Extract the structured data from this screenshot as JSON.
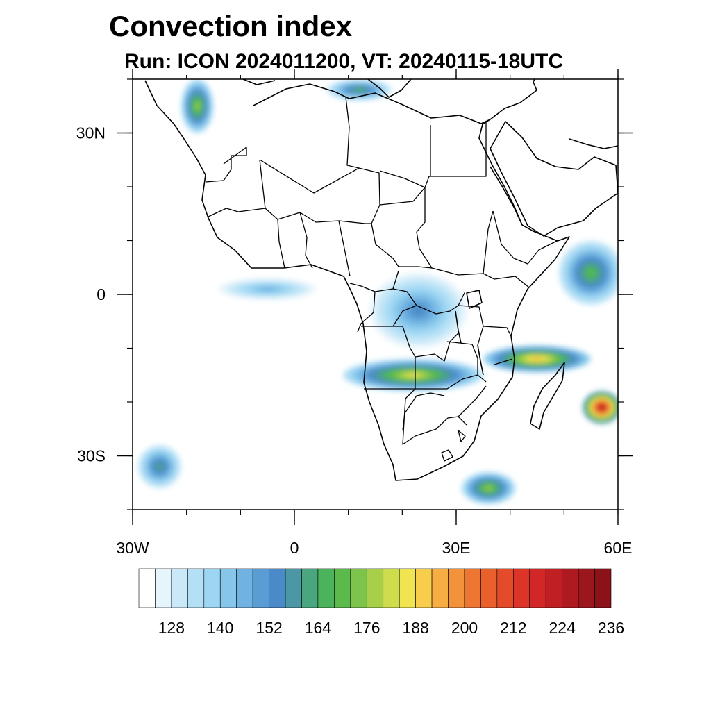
{
  "header": {
    "title": "Convection index",
    "subtitle": "Run: ICON 2024011200,  VT: 20240115-18UTC"
  },
  "map": {
    "projection": "cylindrical-equidistant",
    "lon_range": [
      -30,
      60
    ],
    "lat_range": [
      -40,
      40
    ],
    "lon_ticks": [
      {
        "value": -30,
        "label": "30W"
      },
      {
        "value": 0,
        "label": "0"
      },
      {
        "value": 30,
        "label": "30E"
      },
      {
        "value": 60,
        "label": "60E"
      }
    ],
    "lat_ticks": [
      {
        "value": 30,
        "label": "30N"
      },
      {
        "value": 0,
        "label": "0"
      },
      {
        "value": -30,
        "label": "30S"
      }
    ],
    "minor_lon_step": 10,
    "minor_lat_step": 10
  },
  "colorbar": {
    "colors": [
      "#ffffff",
      "#e6f4fc",
      "#c9e8f8",
      "#b4e0f6",
      "#9dd6f3",
      "#86c6ea",
      "#70b2e2",
      "#5a9dd4",
      "#4a8ac8",
      "#4c97a6",
      "#4aa67e",
      "#4cb35d",
      "#5cba4c",
      "#7cc44b",
      "#a8cf4a",
      "#cddd4c",
      "#f0e451",
      "#f8cd4c",
      "#f6ad42",
      "#f2923a",
      "#ee7633",
      "#e9602d",
      "#e34b2a",
      "#dc3428",
      "#d12727",
      "#c01f24",
      "#ae1a20",
      "#9c161d",
      "#8c121a"
    ],
    "labels": [
      "128",
      "140",
      "152",
      "164",
      "176",
      "188",
      "200",
      "212",
      "224",
      "236"
    ]
  },
  "chart_data": {
    "type": "heatmap",
    "title": "Convection index",
    "subtitle": "Run: ICON 2024011200,  VT: 20240115-18UTC",
    "xlabel": "",
    "ylabel": "",
    "x_range": [
      -30,
      60
    ],
    "y_range": [
      -40,
      40
    ],
    "levels_start": 122,
    "levels_step": 4,
    "colorbar_ticks": [
      128,
      140,
      152,
      164,
      176,
      188,
      200,
      212,
      224,
      236
    ],
    "regions": [
      {
        "name": "central-africa-congo",
        "lon": 23,
        "lat": -3,
        "rlon": 9,
        "rlat": 7,
        "level": 1,
        "peak": 8
      },
      {
        "name": "zambia-angola-band",
        "lon": 22,
        "lat": -15,
        "rlon": 13,
        "rlat": 3,
        "level": 3,
        "peak": 16
      },
      {
        "name": "mozambique-channel-band",
        "lon": 45,
        "lat": -12,
        "rlon": 10,
        "rlat": 2.5,
        "level": 4,
        "peak": 18
      },
      {
        "name": "cyclone-east-madagascar",
        "lon": 57,
        "lat": -21,
        "rlon": 3.5,
        "rlat": 3,
        "level": 8,
        "peak": 27
      },
      {
        "name": "horn-of-africa-ocean",
        "lon": 55,
        "lat": 4,
        "rlon": 6,
        "rlat": 6,
        "level": 2,
        "peak": 12
      },
      {
        "name": "south-atlantic-south",
        "lon": 36,
        "lat": -36,
        "rlon": 5,
        "rlat": 3,
        "level": 3,
        "peak": 14
      },
      {
        "name": "northeast-atlantic",
        "lon": -18,
        "lat": 35,
        "rlon": 3,
        "rlat": 5,
        "level": 3,
        "peak": 14
      },
      {
        "name": "west-mediterranean",
        "lon": 12,
        "lat": 38,
        "rlon": 6,
        "rlat": 2,
        "level": 2,
        "peak": 11
      },
      {
        "name": "gulf-of-guinea",
        "lon": -5,
        "lat": 1,
        "rlon": 9,
        "rlat": 2,
        "level": 1,
        "peak": 6
      },
      {
        "name": "southwest-atlantic",
        "lon": -25,
        "lat": -32,
        "rlon": 4,
        "rlat": 4,
        "level": 2,
        "peak": 10
      }
    ]
  }
}
